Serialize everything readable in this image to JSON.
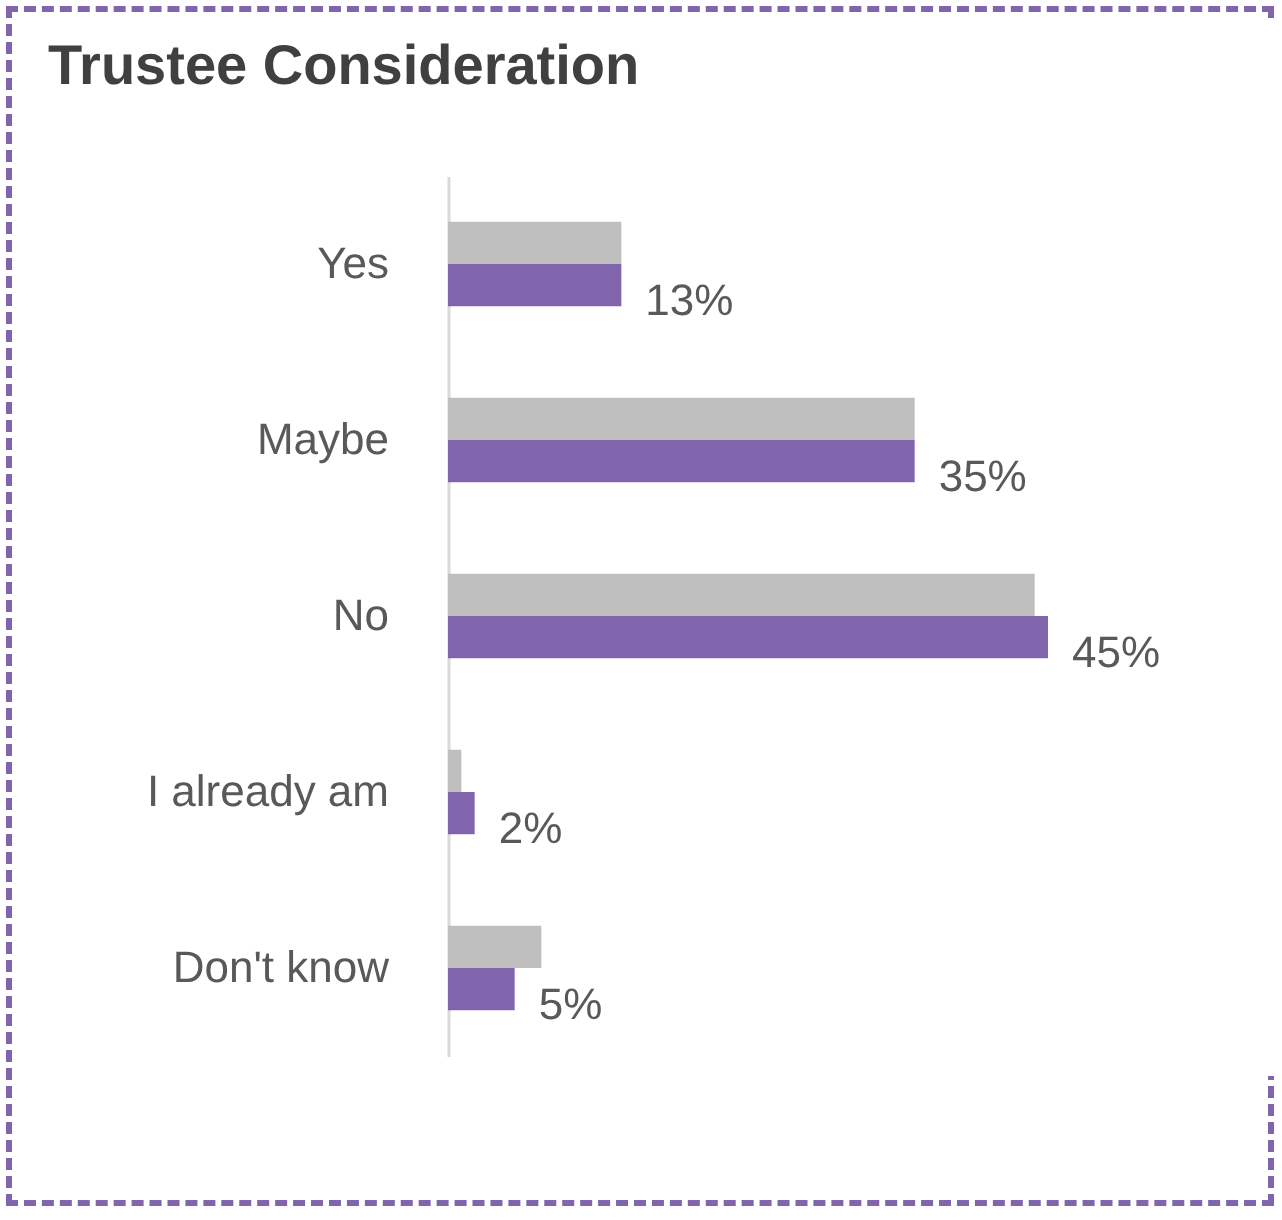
{
  "chart_data": {
    "type": "bar",
    "orientation": "horizontal",
    "title": "Trustee Consideration",
    "categories": [
      "Yes",
      "Maybe",
      "No",
      "I already am",
      "Don't know"
    ],
    "series": [
      {
        "color": "#bfbfbf",
        "values": [
          13,
          35,
          44,
          1,
          7
        ]
      },
      {
        "color": "#8064ac",
        "values": [
          13,
          35,
          45,
          2,
          5
        ],
        "value_labels": [
          "13%",
          "35%",
          "45%",
          "2%",
          "5%"
        ]
      }
    ]
  }
}
